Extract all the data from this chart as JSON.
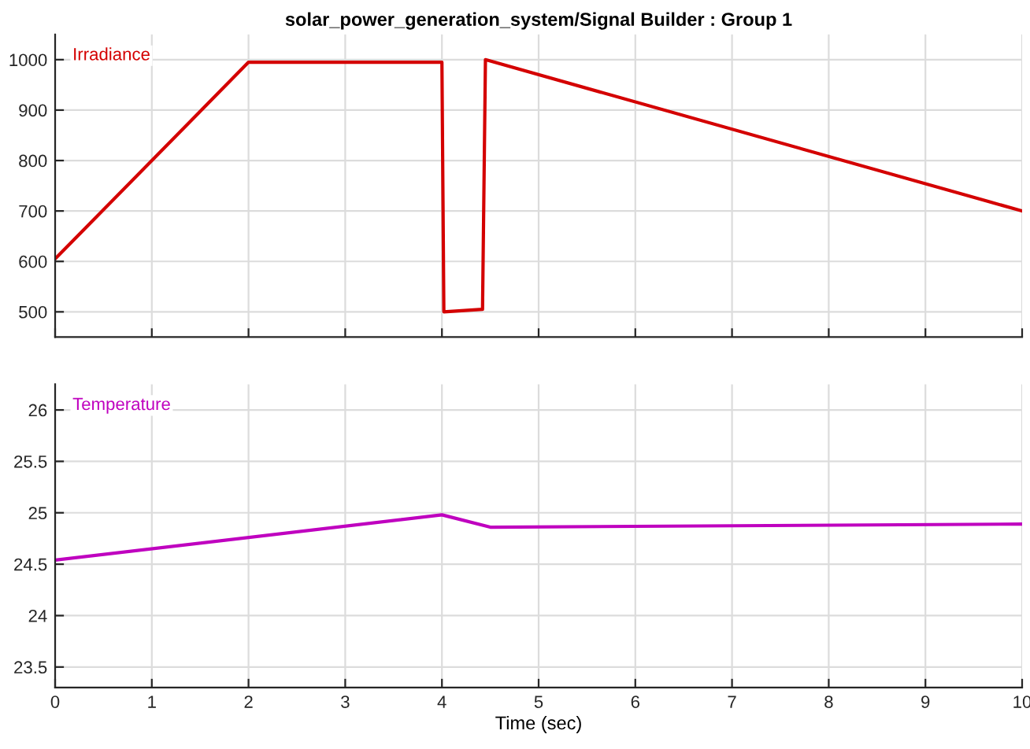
{
  "chart_data": [
    {
      "type": "line",
      "title": "solar_power_generation_system/Signal Builder : Group 1",
      "x": [
        0,
        2,
        4,
        4.02,
        4.42,
        4.45,
        10
      ],
      "series": [
        {
          "name": "Irradiance",
          "color": "#d40000",
          "values": [
            605,
            995,
            995,
            500,
            505,
            1000,
            700
          ]
        }
      ],
      "xlim": [
        0,
        10
      ],
      "xticks": [
        0,
        1,
        2,
        3,
        4,
        5,
        6,
        7,
        8,
        9,
        10
      ],
      "ylim": [
        450,
        1050
      ],
      "yticks": [
        500,
        600,
        700,
        800,
        900,
        1000
      ],
      "grid": true,
      "tick_labels": "y",
      "line_style": "solid",
      "marker": "none"
    },
    {
      "type": "line",
      "xlabel": "Time (sec)",
      "x": [
        0,
        4,
        4.5,
        10
      ],
      "series": [
        {
          "name": "Temperature",
          "color": "#bf00bf",
          "values": [
            24.54,
            24.98,
            24.86,
            24.89
          ]
        }
      ],
      "xlim": [
        0,
        10
      ],
      "xticks": [
        0,
        1,
        2,
        3,
        4,
        5,
        6,
        7,
        8,
        9,
        10
      ],
      "ylim": [
        23.3,
        26.25
      ],
      "yticks": [
        23.5,
        24,
        24.5,
        25,
        25.5,
        26
      ],
      "grid": true,
      "line_style": "solid",
      "marker": "none"
    }
  ]
}
